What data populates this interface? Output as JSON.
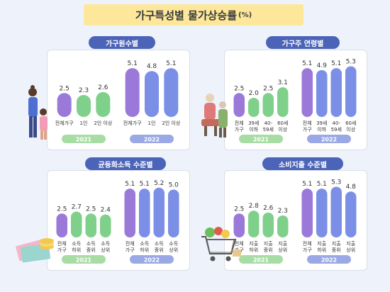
{
  "title": "가구특성별 물가상승률",
  "title_unit": "(%)",
  "colors": {
    "title_bg": "#fde79a",
    "pill_bg": "#4b64b8",
    "bar_2021": "#7fd08a",
    "bar_2021_first": "#9a79d9",
    "bar_2022": "#7b8fe6",
    "bar_2022_first": "#9a79d9",
    "year_2021_bg": "#a8dca5",
    "year_2022_bg": "#9aa8e6"
  },
  "chart_data": [
    {
      "type": "bar",
      "title": "가구원수별",
      "years": [
        "2021",
        "2022"
      ],
      "categories": [
        "전체가구",
        "1인",
        "2인 이상"
      ],
      "series": [
        {
          "year": "2021",
          "values": [
            2.5,
            2.3,
            2.6
          ]
        },
        {
          "year": "2022",
          "values": [
            5.1,
            4.8,
            5.1
          ]
        }
      ]
    },
    {
      "type": "bar",
      "title": "가구주 연령별",
      "years": [
        "2021",
        "2022"
      ],
      "categories": [
        "전체\n가구",
        "39세\n이하",
        "40-\n59세",
        "60세\n이상"
      ],
      "series": [
        {
          "year": "2021",
          "values": [
            2.5,
            2.0,
            2.5,
            3.1
          ]
        },
        {
          "year": "2022",
          "values": [
            5.1,
            4.9,
            5.1,
            5.3
          ]
        }
      ]
    },
    {
      "type": "bar",
      "title": "균등화소득 수준별",
      "years": [
        "2021",
        "2022"
      ],
      "categories": [
        "전체\n가구",
        "소득\n하위",
        "소득\n중위",
        "소득\n상위"
      ],
      "series": [
        {
          "year": "2021",
          "values": [
            2.5,
            2.7,
            2.5,
            2.4
          ]
        },
        {
          "year": "2022",
          "values": [
            5.1,
            5.1,
            5.2,
            5.0
          ]
        }
      ]
    },
    {
      "type": "bar",
      "title": "소비지출 수준별",
      "years": [
        "2021",
        "2022"
      ],
      "categories": [
        "전체\n가구",
        "지출\n하위",
        "지출\n중위",
        "지출\n상위"
      ],
      "series": [
        {
          "year": "2021",
          "values": [
            2.5,
            2.8,
            2.6,
            2.3
          ]
        },
        {
          "year": "2022",
          "values": [
            5.1,
            5.1,
            5.3,
            4.8
          ]
        }
      ]
    }
  ]
}
